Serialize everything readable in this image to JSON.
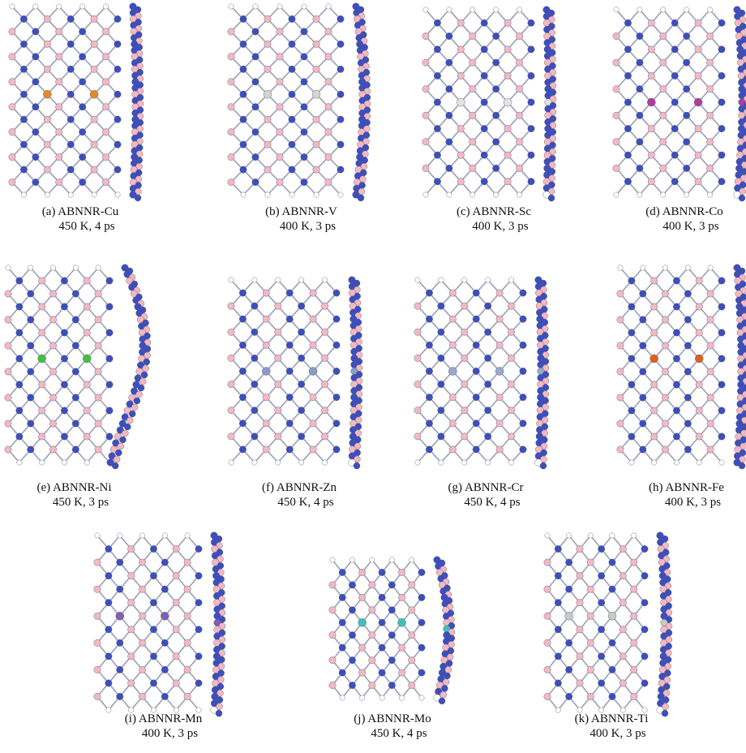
{
  "figure": {
    "panels": [
      {
        "label": "(a) ABNNR-Cu",
        "conditions": "450 K, 4 ps"
      },
      {
        "label": "(b) ABNNR-V",
        "conditions": "400 K, 3 ps"
      },
      {
        "label": "(c) ABNNR-Sc",
        "conditions": "400 K, 3 ps"
      },
      {
        "label": "(d) ABNNR-Co",
        "conditions": "400 K, 3 ps"
      },
      {
        "label": "(e) ABNNR-Ni",
        "conditions": "450 K, 3 ps"
      },
      {
        "label": "(f) ABNNR-Zn",
        "conditions": "450 K, 4 ps"
      },
      {
        "label": "(g) ABNNR-Cr",
        "conditions": "450 K, 4 ps"
      },
      {
        "label": "(h) ABNNR-Fe",
        "conditions": "400 K, 3 ps"
      },
      {
        "label": "(i) ABNNR-Mn",
        "conditions": "400 K, 3 ps"
      },
      {
        "label": "(j) ABNNR-Mo",
        "conditions": "450 K, 4 ps"
      },
      {
        "label": "(k) ABNNR-Ti",
        "conditions": "400 K, 3 ps"
      }
    ]
  }
}
